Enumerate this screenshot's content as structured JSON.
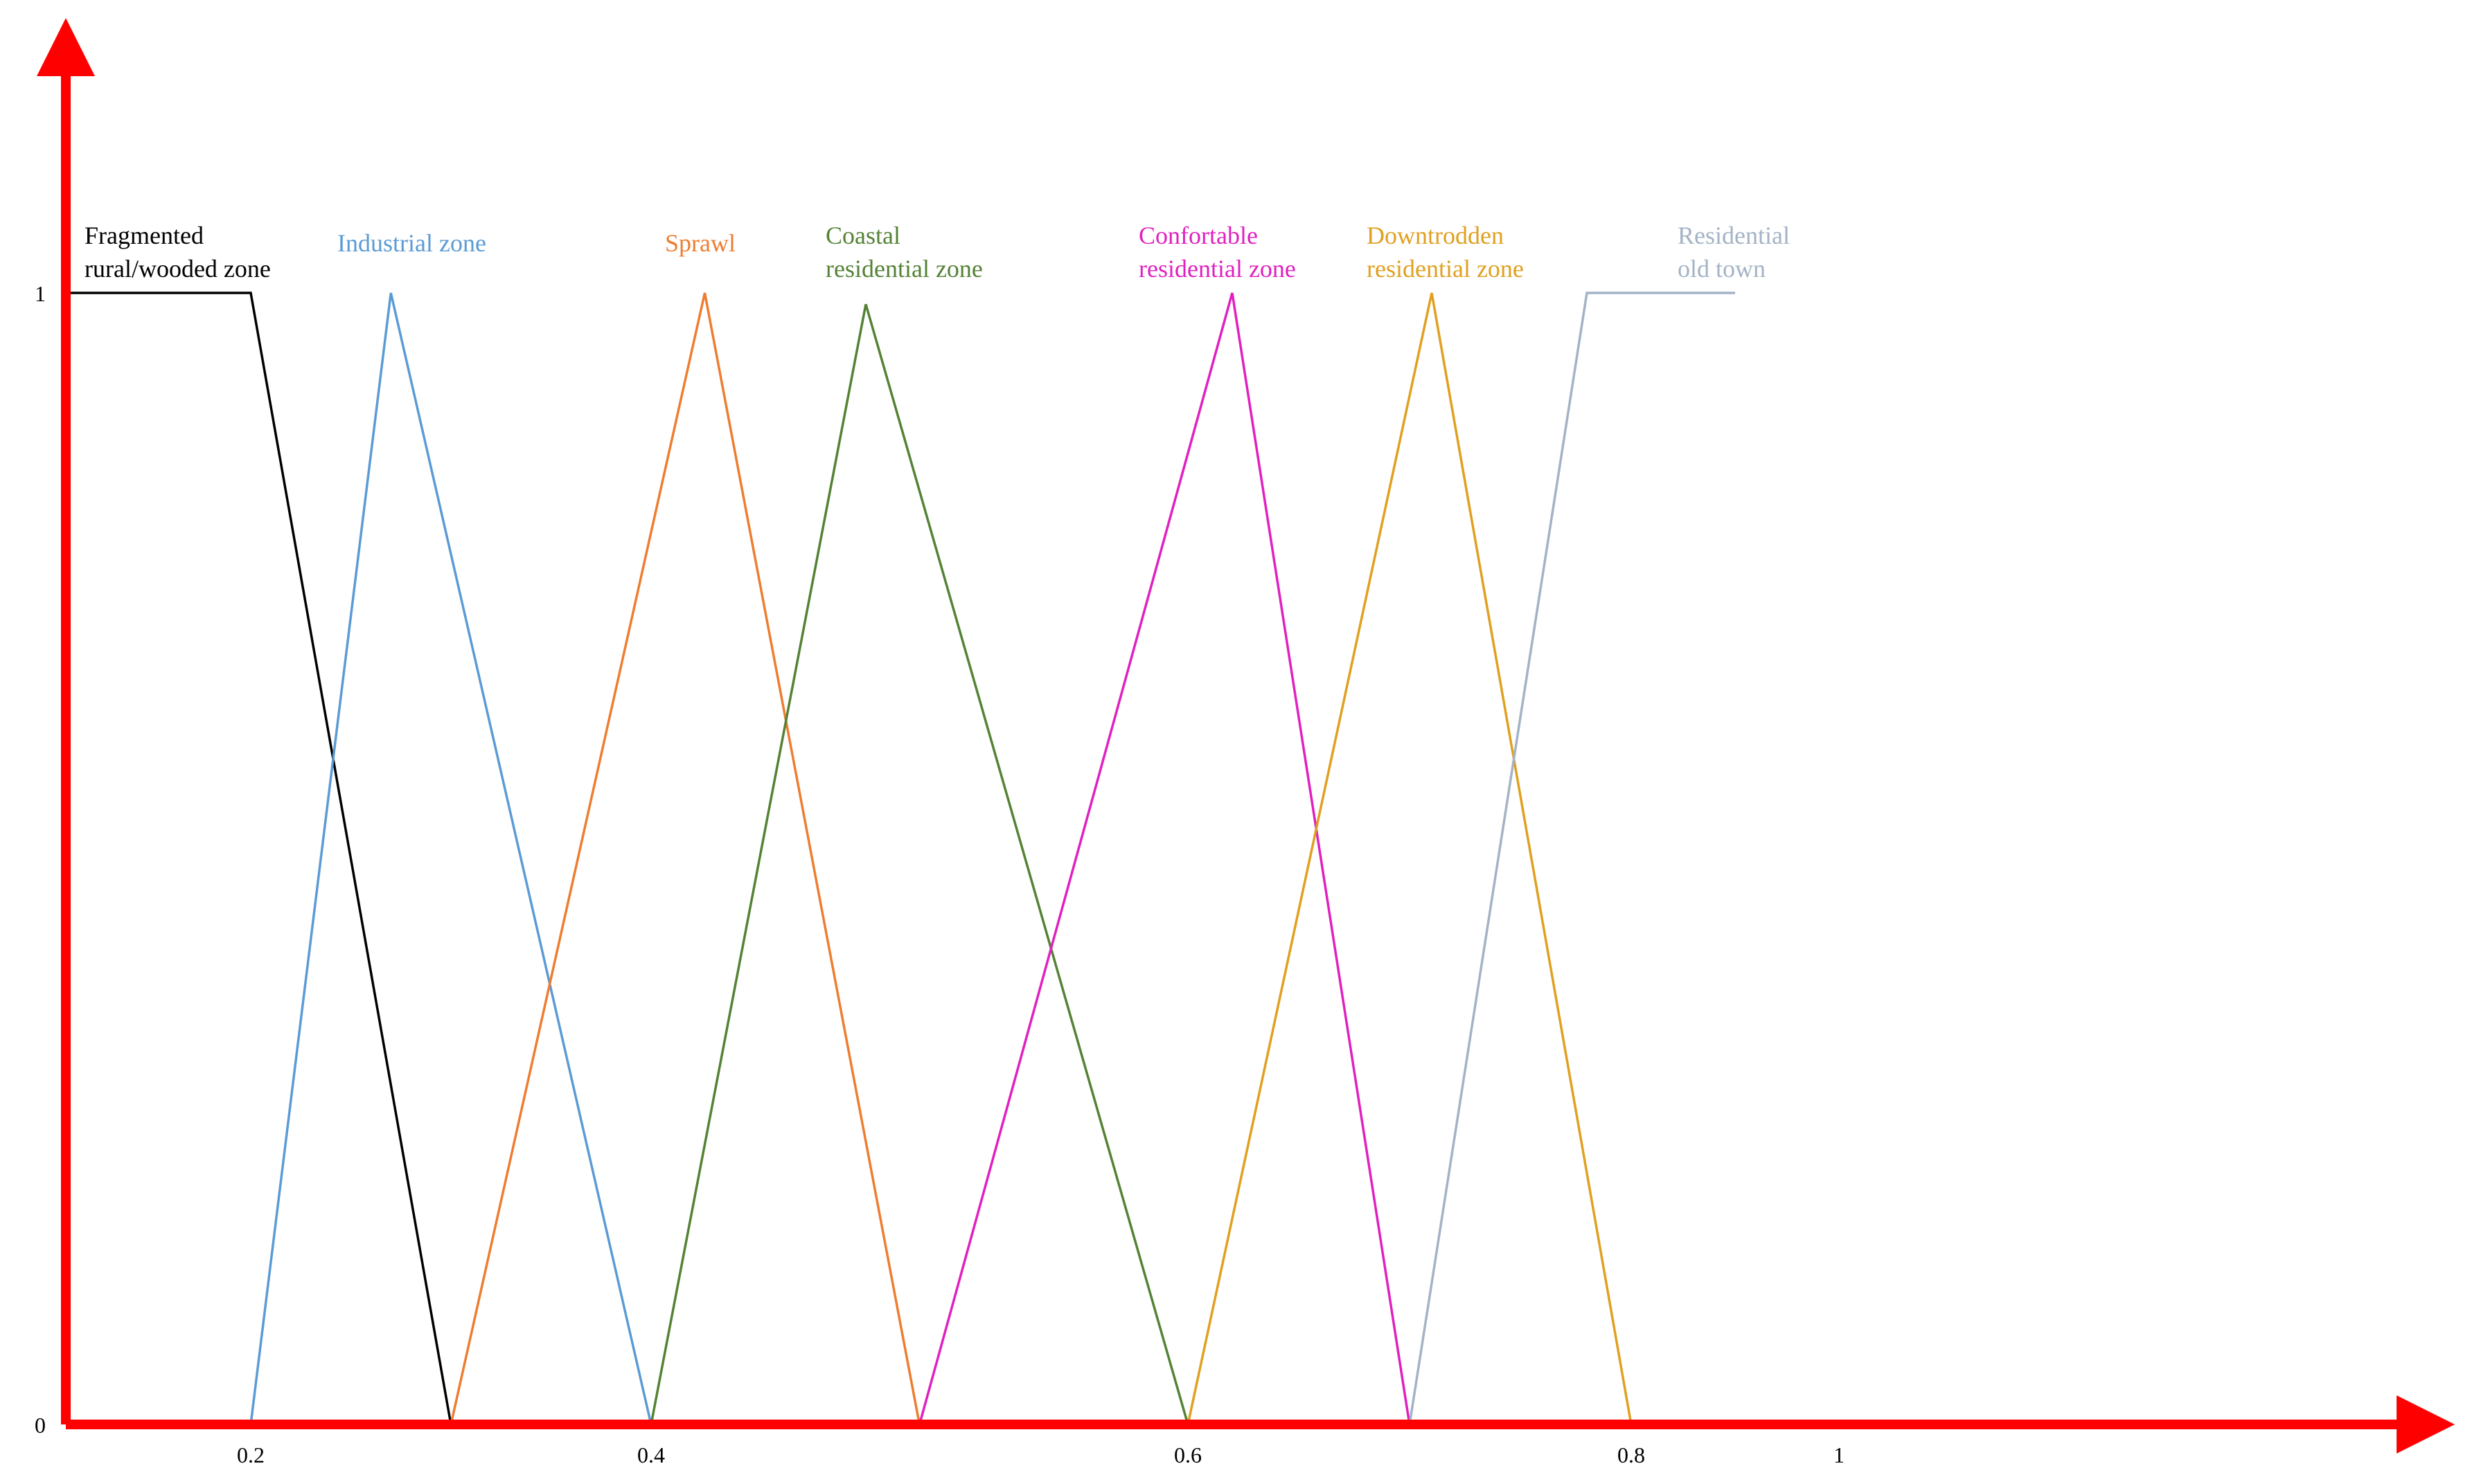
{
  "chart_data": {
    "type": "line",
    "title": "",
    "xlabel": "",
    "ylabel": "",
    "ylim": [
      0,
      1
    ],
    "x_ticks": [
      "0.2",
      "0.4",
      "0.6",
      "0.8",
      "1"
    ],
    "y_ticks": [
      "0",
      "1"
    ],
    "grid": false,
    "legend": "labels above peaks",
    "axis_color": "#ff0000",
    "series": [
      {
        "name_lines": [
          "Fragmented",
          "rural/wooded zone"
        ],
        "color": "#000000",
        "points": [
          [
            0.005,
            1
          ],
          [
            0.2,
            1
          ],
          [
            0.3,
            0
          ]
        ]
      },
      {
        "name_lines": [
          "Industrial zone"
        ],
        "color": "#5b9bd5",
        "points": [
          [
            0.2,
            0
          ],
          [
            0.27,
            1
          ],
          [
            0.4,
            0
          ]
        ]
      },
      {
        "name_lines": [
          "Sprawl"
        ],
        "color": "#ed7d31",
        "points": [
          [
            0.3,
            0
          ],
          [
            0.42,
            1
          ],
          [
            0.5,
            0
          ]
        ]
      },
      {
        "name_lines": [
          "Coastal",
          "residential zone"
        ],
        "color": "#548235",
        "points": [
          [
            0.4,
            0
          ],
          [
            0.48,
            0.99
          ],
          [
            0.6,
            0
          ]
        ]
      },
      {
        "name_lines": [
          "Confortable",
          "residential zone"
        ],
        "color": "#e020c0",
        "points": [
          [
            0.5,
            0
          ],
          [
            0.62,
            1
          ],
          [
            0.7,
            0
          ]
        ]
      },
      {
        "name_lines": [
          "Downtrodden",
          "residential zone"
        ],
        "color": "#e0a020",
        "points": [
          [
            0.6,
            0
          ],
          [
            0.71,
            1
          ],
          [
            0.8,
            0
          ]
        ]
      },
      {
        "name_lines": [
          "Residential",
          "old town"
        ],
        "color": "#a3b3c5",
        "points": [
          [
            0.7,
            0
          ],
          [
            0.78,
            1
          ],
          [
            0.9,
            1
          ]
        ]
      }
    ]
  }
}
